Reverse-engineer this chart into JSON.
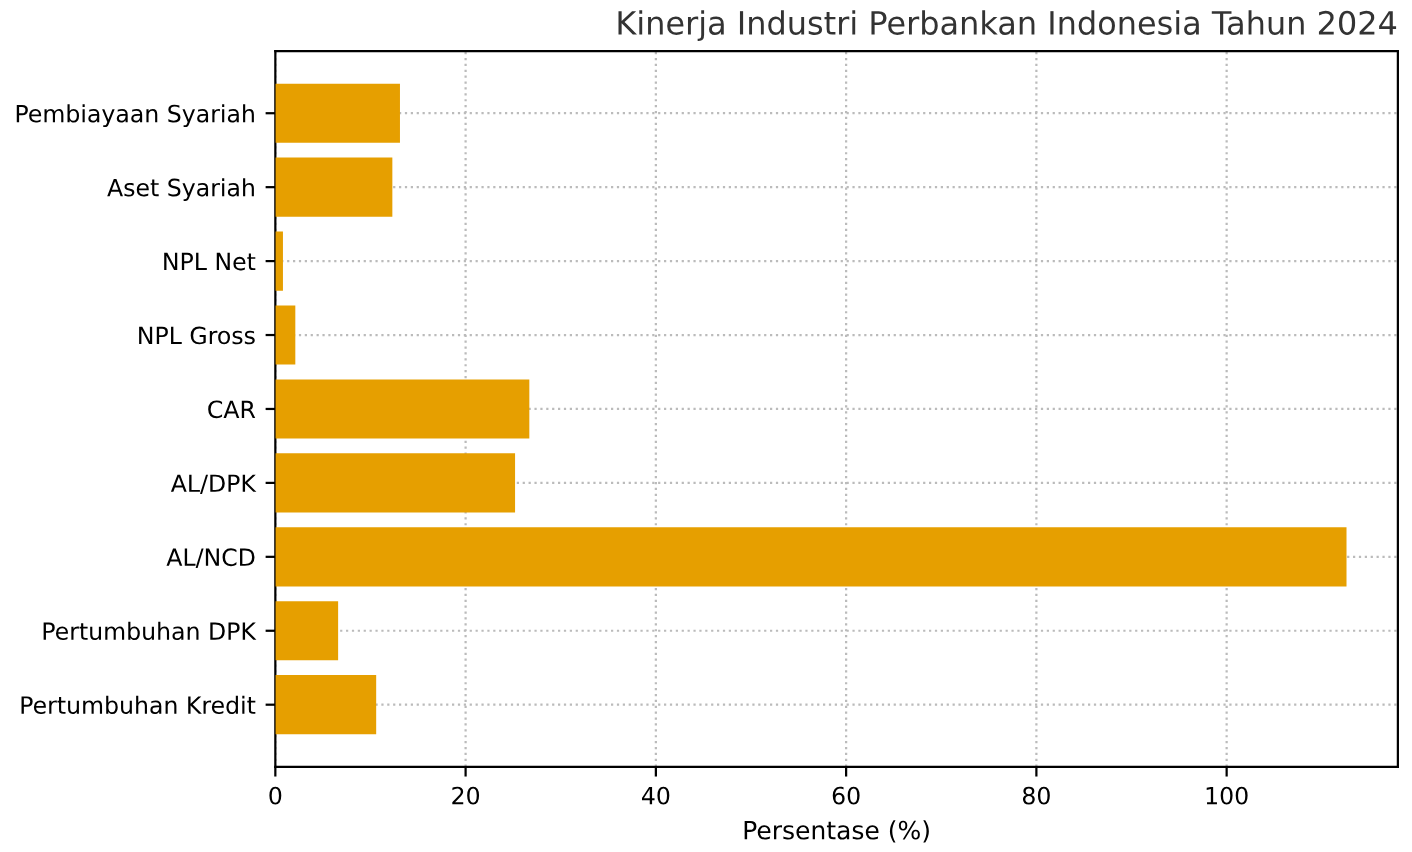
{
  "chart_data": {
    "type": "bar",
    "orientation": "horizontal",
    "title": "Kinerja Industri Perbankan Indonesia Tahun 2024",
    "categories": [
      "Pembiayaan Syariah",
      "Aset Syariah",
      "NPL Net",
      "NPL Gross",
      "CAR",
      "AL/DPK",
      "AL/NCD",
      "Pertumbuhan DPK",
      "Pertumbuhan Kredit"
    ],
    "values": [
      13.1,
      12.3,
      0.8,
      2.1,
      26.7,
      25.2,
      112.6,
      6.6,
      10.6
    ],
    "color": "#e69f00",
    "xlabel": "Persentase (%)",
    "xlim": [
      0,
      118
    ],
    "xticks": [
      0,
      20,
      40,
      60,
      80,
      100
    ],
    "grid": true
  }
}
